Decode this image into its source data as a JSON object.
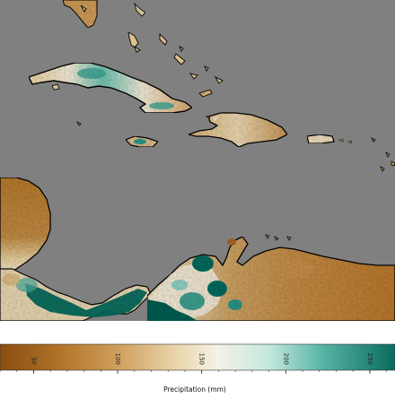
{
  "map": {
    "ocean_color": "#808080",
    "coast_color": "#111111",
    "palette": {
      "very_dry": "#8a4d10",
      "dry": "#b57a2e",
      "moderate": "#d8b77a",
      "neutral": "#f3ebd6",
      "wet": "#a7dccf",
      "very_wet": "#2f9a8a",
      "extreme_wet": "#00584b"
    },
    "regions": [
      "Florida",
      "Bahamas",
      "Cuba",
      "Jamaica",
      "Hispaniola",
      "Puerto Rico",
      "Lesser Antilles",
      "Yucatan / Central America",
      "Panama",
      "Colombia / Venezuela"
    ]
  },
  "colorbar": {
    "label": "Precipitation (mm)",
    "vmin": 30,
    "vmax": 265,
    "ticks": [
      {
        "value": 50,
        "label": "50"
      },
      {
        "value": 100,
        "label": "100"
      },
      {
        "value": 150,
        "label": "150"
      },
      {
        "value": 200,
        "label": "200"
      },
      {
        "value": 250,
        "label": "250"
      }
    ],
    "colormap": "BrBG"
  }
}
